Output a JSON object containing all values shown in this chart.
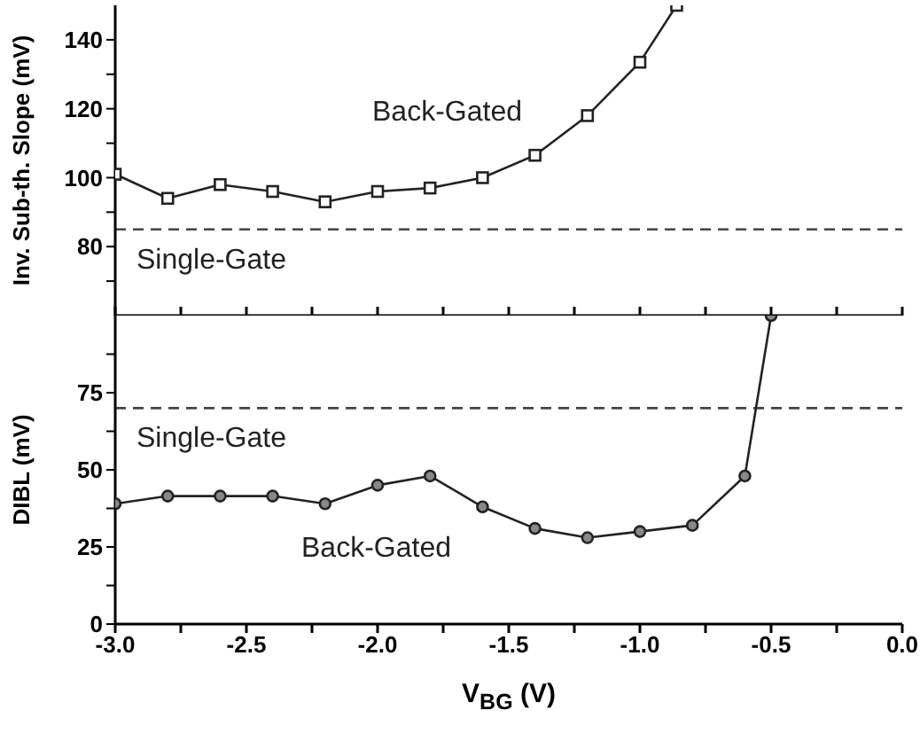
{
  "chart_data": [
    {
      "type": "line",
      "ylabel": "Inv. Sub-th. Slope (mV)",
      "xlim": [
        -3,
        0
      ],
      "xticks": [
        {
          "value": -3,
          "label": null
        },
        {
          "value": -2.75,
          "label": null
        },
        {
          "value": -2.5,
          "label": null
        },
        {
          "value": -2.25,
          "label": null
        },
        {
          "value": -2,
          "label": null
        },
        {
          "value": -1.75,
          "label": null
        },
        {
          "value": -1.5,
          "label": null
        },
        {
          "value": -1.25,
          "label": null
        },
        {
          "value": -1,
          "label": null
        },
        {
          "value": -0.75,
          "label": null
        },
        {
          "value": -0.5,
          "label": null
        },
        {
          "value": -0.25,
          "label": null
        },
        {
          "value": 0,
          "label": null
        }
      ],
      "ylim": [
        60,
        150
      ],
      "yticks": [
        {
          "value": 70,
          "label": null
        },
        80,
        {
          "value": 90,
          "label": null
        },
        100,
        {
          "value": 110,
          "label": null
        },
        120,
        {
          "value": 130,
          "label": null
        },
        140
      ],
      "tick_labels": "y",
      "marker": "square",
      "line_style": "solid",
      "grid": false,
      "legend": false,
      "series": [
        {
          "name": "Back-Gated",
          "color": "#222222",
          "x": [
            -3,
            -2.8,
            -2.6,
            -2.4,
            -2.2,
            -2,
            -1.8,
            -1.6,
            -1.4,
            -1.2,
            -1,
            -0.86
          ],
          "values": [
            101,
            94,
            98,
            96,
            93,
            96,
            97,
            100,
            106.5,
            118,
            133.5,
            150
          ]
        }
      ],
      "ref_lines": [
        {
          "axis": "y",
          "value": 85,
          "label": "Single-Gate",
          "color": "#444444",
          "line_style": "dashed"
        }
      ]
    },
    {
      "type": "line",
      "ylabel": "DIBL (mV)",
      "xlabel": "V$_{BG}$ (V)",
      "xlim": [
        -3,
        0
      ],
      "xticks": [
        {
          "value": -3,
          "label": "-3.0"
        },
        {
          "value": -2.75,
          "label": null
        },
        {
          "value": -2.5,
          "label": "-2.5"
        },
        {
          "value": -2.25,
          "label": null
        },
        {
          "value": -2,
          "label": "-2.0"
        },
        {
          "value": -1.75,
          "label": null
        },
        {
          "value": -1.5,
          "label": "-1.5"
        },
        {
          "value": -1.25,
          "label": null
        },
        {
          "value": -1,
          "label": "-1.0"
        },
        {
          "value": -0.75,
          "label": null
        },
        {
          "value": -0.5,
          "label": "-0.5"
        },
        {
          "value": -0.25,
          "label": null
        },
        {
          "value": 0,
          "label": "0.0"
        }
      ],
      "ylim": [
        0,
        100
      ],
      "yticks": [
        0,
        {
          "value": 12.5,
          "label": null
        },
        25,
        {
          "value": 37.5,
          "label": null
        },
        50,
        {
          "value": 62.5,
          "label": null
        },
        75,
        {
          "value": 87.5,
          "label": null
        }
      ],
      "marker": "circle",
      "line_style": "solid",
      "grid": false,
      "legend": false,
      "series": [
        {
          "name": "Back-Gated",
          "color": "#222222",
          "x": [
            -3,
            -2.8,
            -2.6,
            -2.4,
            -2.2,
            -2,
            -1.8,
            -1.6,
            -1.4,
            -1.2,
            -1,
            -0.8,
            -0.6,
            -0.5
          ],
          "values": [
            39,
            41.5,
            41.5,
            41.5,
            39,
            45,
            48,
            38,
            31,
            28,
            30,
            32,
            48,
            100
          ]
        }
      ],
      "ref_lines": [
        {
          "axis": "y",
          "value": 70,
          "label": "Single-Gate",
          "color": "#444444",
          "line_style": "dashed"
        }
      ]
    }
  ]
}
